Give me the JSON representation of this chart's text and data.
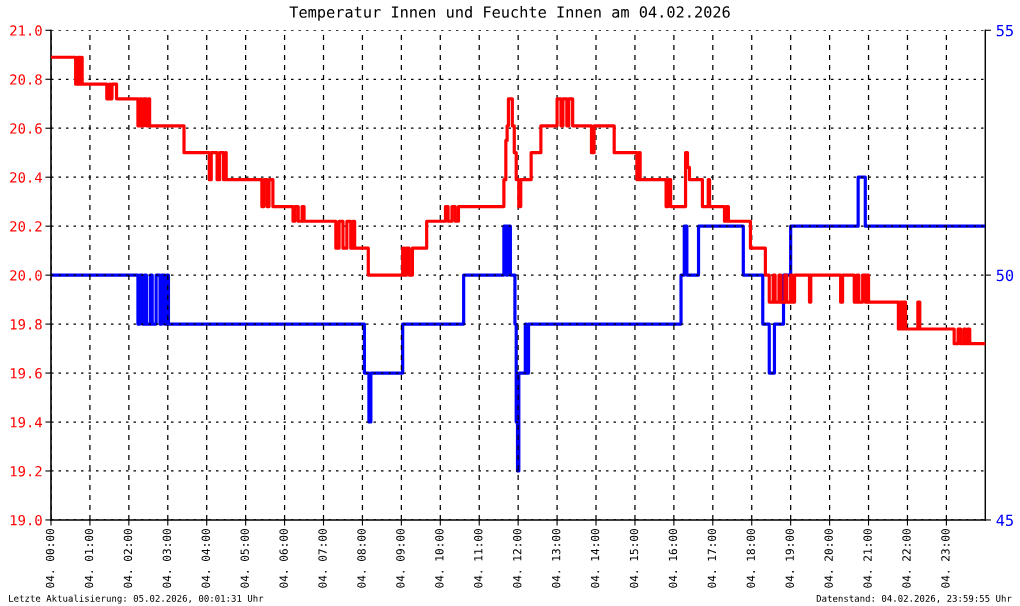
{
  "chart_data": {
    "type": "step",
    "title": "Temperatur Innen und Feuchte Innen am 04.02.2026",
    "annotations": [
      "Letzte Aktualisierung: 05.02.2026, 00:01:31 Uhr",
      "Datenstand: 04.02.2026, 23:59:55 Uhr"
    ],
    "xlim": [
      "2026-02-04T00:00",
      "2026-02-05T00:00"
    ],
    "xticks": [
      {
        "value": "2026-02-04T00:00",
        "label": "04. 00:00"
      },
      {
        "value": "2026-02-04T01:00",
        "label": "04. 01:00"
      },
      {
        "value": "2026-02-04T02:00",
        "label": "04. 02:00"
      },
      {
        "value": "2026-02-04T03:00",
        "label": "04. 03:00"
      },
      {
        "value": "2026-02-04T04:00",
        "label": "04. 04:00"
      },
      {
        "value": "2026-02-04T05:00",
        "label": "04. 05:00"
      },
      {
        "value": "2026-02-04T06:00",
        "label": "04. 06:00"
      },
      {
        "value": "2026-02-04T07:00",
        "label": "04. 07:00"
      },
      {
        "value": "2026-02-04T08:00",
        "label": "04. 08:00"
      },
      {
        "value": "2026-02-04T09:00",
        "label": "04. 09:00"
      },
      {
        "value": "2026-02-04T10:00",
        "label": "04. 10:00"
      },
      {
        "value": "2026-02-04T11:00",
        "label": "04. 11:00"
      },
      {
        "value": "2026-02-04T12:00",
        "label": "04. 12:00"
      },
      {
        "value": "2026-02-04T13:00",
        "label": "04. 13:00"
      },
      {
        "value": "2026-02-04T14:00",
        "label": "04. 14:00"
      },
      {
        "value": "2026-02-04T15:00",
        "label": "04. 15:00"
      },
      {
        "value": "2026-02-04T16:00",
        "label": "04. 16:00"
      },
      {
        "value": "2026-02-04T17:00",
        "label": "04. 17:00"
      },
      {
        "value": "2026-02-04T18:00",
        "label": "04. 18:00"
      },
      {
        "value": "2026-02-04T19:00",
        "label": "04. 19:00"
      },
      {
        "value": "2026-02-04T20:00",
        "label": "04. 20:00"
      },
      {
        "value": "2026-02-04T21:00",
        "label": "04. 21:00"
      },
      {
        "value": "2026-02-04T22:00",
        "label": "04. 22:00"
      },
      {
        "value": "2026-02-04T23:00",
        "label": "04. 23:00"
      }
    ],
    "ylim": [
      19.0,
      21.0
    ],
    "yticks": [
      {
        "value": 19.0,
        "label": "19.0"
      },
      {
        "value": 19.2,
        "label": "19.2"
      },
      {
        "value": 19.4,
        "label": "19.4"
      },
      {
        "value": 19.6,
        "label": "19.6"
      },
      {
        "value": 19.8,
        "label": "19.8"
      },
      {
        "value": 20.0,
        "label": "20.0"
      },
      {
        "value": 20.2,
        "label": "20.2"
      },
      {
        "value": 20.4,
        "label": "20.4"
      },
      {
        "value": 20.6,
        "label": "20.6"
      },
      {
        "value": 20.8,
        "label": "20.8"
      },
      {
        "value": 21.0,
        "label": "21.0"
      }
    ],
    "y2lim": [
      45,
      55
    ],
    "y2ticks": [
      45,
      50,
      55
    ],
    "grid": true,
    "marker": "none",
    "line_style": "solid",
    "series": [
      {
        "color": "#ff0000",
        "x": [
          "2026-02-04T00:00",
          "2026-02-04T00:38",
          "2026-02-04T00:41",
          "2026-02-04T00:44",
          "2026-02-04T00:46",
          "2026-02-04T00:48",
          "2026-02-04T01:26",
          "2026-02-04T01:30",
          "2026-02-04T01:31",
          "2026-02-04T01:34",
          "2026-02-04T01:41",
          "2026-02-04T02:14",
          "2026-02-04T02:17",
          "2026-02-04T02:20",
          "2026-02-04T02:23",
          "2026-02-04T02:27",
          "2026-02-04T02:30",
          "2026-02-04T02:32",
          "2026-02-04T03:25",
          "2026-02-04T04:04",
          "2026-02-04T04:07",
          "2026-02-04T04:16",
          "2026-02-04T04:20",
          "2026-02-04T04:26",
          "2026-02-04T04:29",
          "2026-02-04T04:30",
          "2026-02-04T05:25",
          "2026-02-04T05:28",
          "2026-02-04T05:33",
          "2026-02-04T05:36",
          "2026-02-04T05:42",
          "2026-02-04T06:13",
          "2026-02-04T06:16",
          "2026-02-04T06:21",
          "2026-02-04T06:27",
          "2026-02-04T06:30",
          "2026-02-04T07:19",
          "2026-02-04T07:24",
          "2026-02-04T07:30",
          "2026-02-04T07:36",
          "2026-02-04T07:42",
          "2026-02-04T07:45",
          "2026-02-04T07:48",
          "2026-02-04T08:09",
          "2026-02-04T09:02",
          "2026-02-04T09:05",
          "2026-02-04T09:08",
          "2026-02-04T09:12",
          "2026-02-04T09:17",
          "2026-02-04T09:39",
          "2026-02-04T10:08",
          "2026-02-04T10:12",
          "2026-02-04T10:18",
          "2026-02-04T10:23",
          "2026-02-04T10:28",
          "2026-02-04T11:38",
          "2026-02-04T11:41",
          "2026-02-04T11:43",
          "2026-02-04T11:45",
          "2026-02-04T11:51",
          "2026-02-04T11:54",
          "2026-02-04T11:57",
          "2026-02-04T12:01",
          "2026-02-04T12:04",
          "2026-02-04T12:20",
          "2026-02-04T12:35",
          "2026-02-04T13:00",
          "2026-02-04T13:06",
          "2026-02-04T13:09",
          "2026-02-04T13:15",
          "2026-02-04T13:18",
          "2026-02-04T13:24",
          "2026-02-04T13:53",
          "2026-02-04T13:57",
          "2026-02-04T14:28",
          "2026-02-04T15:03",
          "2026-02-04T15:06",
          "2026-02-04T15:08",
          "2026-02-04T15:48",
          "2026-02-04T15:51",
          "2026-02-04T15:55",
          "2026-02-04T16:18",
          "2026-02-04T16:21",
          "2026-02-04T16:24",
          "2026-02-04T16:44",
          "2026-02-04T16:53",
          "2026-02-04T16:55",
          "2026-02-04T17:18",
          "2026-02-04T17:21",
          "2026-02-04T17:24",
          "2026-02-04T17:58",
          "2026-02-04T18:21",
          "2026-02-04T18:27",
          "2026-02-04T18:33",
          "2026-02-04T18:36",
          "2026-02-04T18:42",
          "2026-02-04T18:45",
          "2026-02-04T18:51",
          "2026-02-04T18:54",
          "2026-02-04T19:00",
          "2026-02-04T19:03",
          "2026-02-04T19:06",
          "2026-02-04T19:29",
          "2026-02-04T19:31",
          "2026-02-04T20:17",
          "2026-02-04T20:20",
          "2026-02-04T20:38",
          "2026-02-04T20:42",
          "2026-02-04T20:45",
          "2026-02-04T20:51",
          "2026-02-04T20:55",
          "2026-02-04T20:57",
          "2026-02-04T21:00",
          "2026-02-04T21:46",
          "2026-02-04T21:49",
          "2026-02-04T21:52",
          "2026-02-04T21:54",
          "2026-02-04T21:57",
          "2026-02-04T22:16",
          "2026-02-04T22:19",
          "2026-02-04T23:12",
          "2026-02-04T23:18",
          "2026-02-04T23:22",
          "2026-02-04T23:27",
          "2026-02-04T23:30",
          "2026-02-04T23:33",
          "2026-02-04T23:36",
          "2026-02-05T00:00"
        ],
        "values": [
          20.89,
          20.78,
          20.89,
          20.78,
          20.89,
          20.78,
          20.72,
          20.78,
          20.72,
          20.78,
          20.72,
          20.61,
          20.72,
          20.61,
          20.72,
          20.61,
          20.72,
          20.61,
          20.5,
          20.39,
          20.5,
          20.39,
          20.5,
          20.39,
          20.5,
          20.39,
          20.28,
          20.39,
          20.28,
          20.39,
          20.28,
          20.22,
          20.28,
          20.22,
          20.28,
          20.22,
          20.11,
          20.22,
          20.11,
          20.22,
          20.11,
          20.22,
          20.11,
          20.0,
          20.11,
          20.0,
          20.11,
          20.0,
          20.11,
          20.22,
          20.28,
          20.22,
          20.28,
          20.22,
          20.28,
          20.39,
          20.55,
          20.61,
          20.72,
          20.61,
          20.5,
          20.39,
          20.28,
          20.39,
          20.5,
          20.61,
          20.72,
          20.61,
          20.72,
          20.61,
          20.72,
          20.61,
          20.5,
          20.61,
          20.5,
          20.39,
          20.5,
          20.39,
          20.28,
          20.39,
          20.28,
          20.5,
          20.44,
          20.39,
          20.28,
          20.39,
          20.28,
          20.22,
          20.28,
          20.22,
          20.11,
          20.0,
          19.89,
          20.0,
          19.89,
          20.0,
          19.89,
          20.0,
          19.89,
          20.0,
          19.89,
          20.0,
          19.89,
          20.0,
          19.89,
          20.0,
          19.89,
          20.0,
          19.89,
          20.0,
          19.89,
          20.0,
          19.89,
          19.78,
          19.89,
          19.78,
          19.89,
          19.78,
          19.89,
          19.78,
          19.72,
          19.78,
          19.72,
          19.78,
          19.72,
          19.78,
          19.72,
          19.72
        ]
      },
      {
        "color": "#0000ff",
        "axis": "y2",
        "x": [
          "2026-02-04T00:00",
          "2026-02-04T02:14",
          "2026-02-04T02:17",
          "2026-02-04T02:21",
          "2026-02-04T02:24",
          "2026-02-04T02:27",
          "2026-02-04T02:33",
          "2026-02-04T02:36",
          "2026-02-04T02:42",
          "2026-02-04T02:48",
          "2026-02-04T02:51",
          "2026-02-04T02:55",
          "2026-02-04T02:58",
          "2026-02-04T03:01",
          "2026-02-04T08:03",
          "2026-02-04T08:10",
          "2026-02-04T08:13",
          "2026-02-04T09:02",
          "2026-02-04T10:36",
          "2026-02-04T11:38",
          "2026-02-04T11:42",
          "2026-02-04T11:44",
          "2026-02-04T11:48",
          "2026-02-04T11:55",
          "2026-02-04T11:57",
          "2026-02-04T11:59",
          "2026-02-04T12:01",
          "2026-02-04T12:11",
          "2026-02-04T12:13",
          "2026-02-04T12:16",
          "2026-02-04T16:11",
          "2026-02-04T16:16",
          "2026-02-04T16:20",
          "2026-02-04T16:38",
          "2026-02-04T17:47",
          "2026-02-04T18:17",
          "2026-02-04T18:27",
          "2026-02-04T18:35",
          "2026-02-04T18:49",
          "2026-02-04T19:00",
          "2026-02-04T20:44",
          "2026-02-04T20:55",
          "2026-02-05T00:00"
        ],
        "values": [
          50,
          49,
          50,
          49,
          50,
          49,
          50,
          49,
          50,
          49,
          50,
          49,
          50,
          49,
          48,
          47,
          48,
          49,
          50,
          51,
          50,
          51,
          50,
          49,
          47,
          46,
          48,
          49,
          48,
          49,
          50,
          51,
          50,
          51,
          50,
          49,
          48,
          49,
          50,
          51,
          52,
          51,
          51
        ]
      }
    ]
  }
}
